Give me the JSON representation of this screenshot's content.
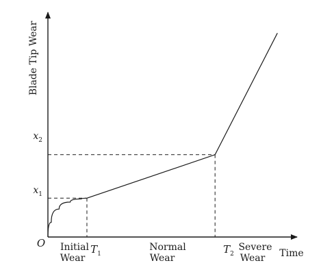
{
  "chart_data": {
    "type": "line",
    "xlabel": "Time",
    "ylabel": "Blade Tip Wear",
    "origin_label": "O",
    "x_ticks": [
      {
        "main": "T",
        "sub": "1"
      },
      {
        "main": "T",
        "sub": "2"
      }
    ],
    "y_ticks": [
      {
        "main": "x",
        "sub": "1"
      },
      {
        "main": "x",
        "sub": "2"
      }
    ],
    "stage_labels": [
      {
        "line1": "Initial",
        "line2": "Wear"
      },
      {
        "line1": "Normal",
        "line2": "Wear"
      },
      {
        "line1": "Severe",
        "line2": "Wear"
      }
    ],
    "series": [
      {
        "points": [
          {
            "x": 0,
            "y": 0
          },
          {
            "x": 0.03,
            "y": 0.38
          },
          {
            "x": 0.1,
            "y": 0.72
          },
          {
            "x": 0.2,
            "y": 0.9
          },
          {
            "x": 0.3,
            "y": 0.98
          },
          {
            "x": 0.35,
            "y": 1.0
          },
          {
            "x": 1.5,
            "y": 2.12
          },
          {
            "x": 2.06,
            "y": 5.25
          }
        ]
      }
    ],
    "markers": {
      "T1": 0.35,
      "T2": 1.5,
      "x1": 1.0,
      "x2": 2.12
    },
    "xlim": [
      0,
      2.15
    ],
    "ylim": [
      0,
      5.75
    ],
    "grid": false
  }
}
